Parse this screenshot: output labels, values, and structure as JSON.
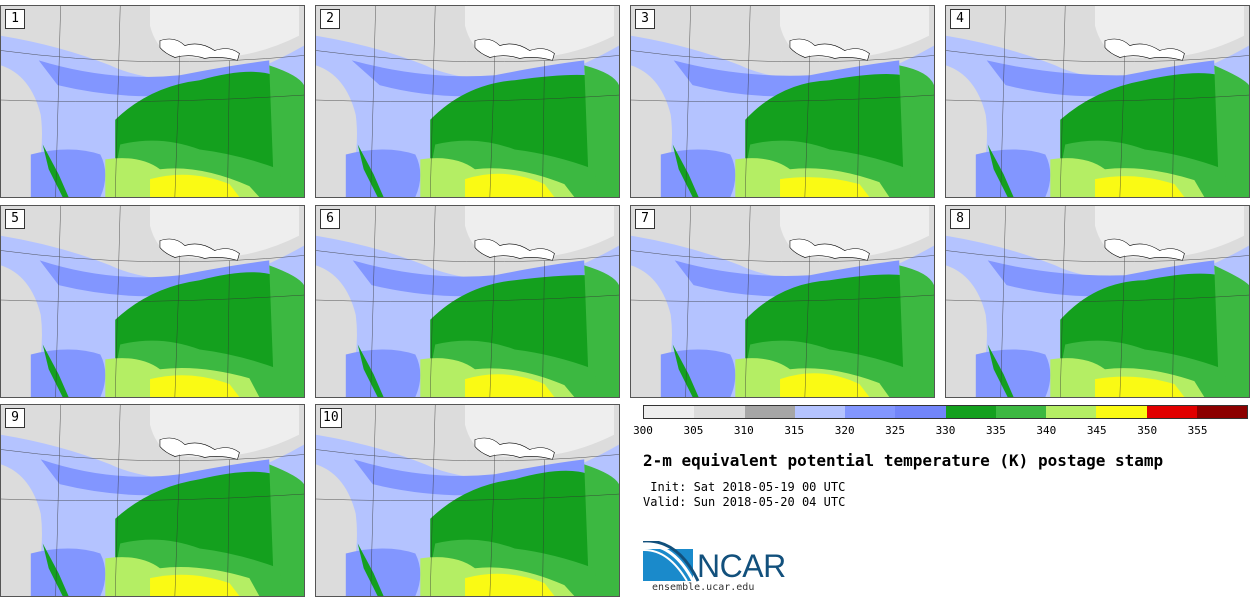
{
  "panels": [
    {
      "label": "1"
    },
    {
      "label": "2"
    },
    {
      "label": "3"
    },
    {
      "label": "4"
    },
    {
      "label": "5"
    },
    {
      "label": "6"
    },
    {
      "label": "7"
    },
    {
      "label": "8"
    },
    {
      "label": "9"
    },
    {
      "label": "10"
    }
  ],
  "colorbar": {
    "colors": [
      "#eeeeee",
      "#dcdcdc",
      "#a6a6a6",
      "#b4c3ff",
      "#8296ff",
      "#7285fa",
      "#14a01e",
      "#3cb841",
      "#b4ee64",
      "#fafa14",
      "#e10000",
      "#8c0000"
    ],
    "ticks": [
      "300",
      "305",
      "310",
      "315",
      "320",
      "325",
      "330",
      "335",
      "340",
      "345",
      "350",
      "355"
    ]
  },
  "title": "2-m equivalent potential temperature (K) postage stamp",
  "init": " Init: Sat 2018-05-19 00 UTC",
  "valid": "Valid: Sun 2018-05-20 04 UTC",
  "logo": {
    "text": "NCAR",
    "url": "ensemble.ucar.edu"
  }
}
